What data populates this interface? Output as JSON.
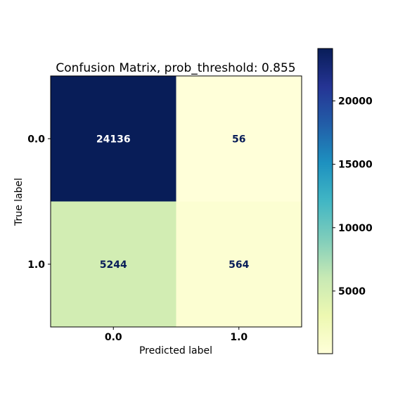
{
  "chart_data": {
    "type": "heatmap",
    "title": "Confusion Matrix, prob_threshold: 0.855",
    "xlabel": "Predicted label",
    "ylabel": "True label",
    "x_categories": [
      "0.0",
      "1.0"
    ],
    "y_categories": [
      "0.0",
      "1.0"
    ],
    "values": [
      [
        24136,
        56
      ],
      [
        5244,
        564
      ]
    ],
    "colormap": "YlGnBu",
    "colorbar": {
      "range": [
        56,
        24136
      ],
      "ticks": [
        5000,
        10000,
        15000,
        20000
      ],
      "tick_labels": [
        "5000",
        "10000",
        "15000",
        "20000"
      ]
    },
    "text_colors": {
      "on_dark": "#ffffff",
      "on_light": "#081d58"
    }
  }
}
